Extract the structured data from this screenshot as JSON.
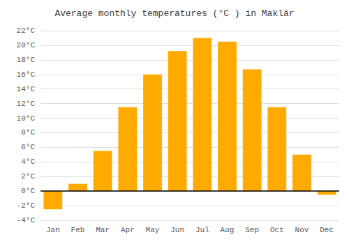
{
  "chart_data": {
    "type": "bar",
    "title": "Average monthly temperatures (°C ) in Maklár",
    "categories": [
      "Jan",
      "Feb",
      "Mar",
      "Apr",
      "May",
      "Jun",
      "Jul",
      "Aug",
      "Sep",
      "Oct",
      "Nov",
      "Dec"
    ],
    "values": [
      -2.5,
      1.0,
      5.5,
      11.5,
      16.0,
      19.2,
      21.0,
      20.5,
      16.7,
      11.5,
      5.0,
      -0.5
    ],
    "color": "#FFAA00",
    "ylim": [
      -4,
      22
    ],
    "yticks": [
      {
        "value": -4,
        "label": "-4°C"
      },
      {
        "value": -2,
        "label": "-2°C"
      },
      {
        "value": 0,
        "label": "0°C"
      },
      {
        "value": 2,
        "label": "2°C"
      },
      {
        "value": 4,
        "label": "4°C"
      },
      {
        "value": 6,
        "label": "6°C"
      },
      {
        "value": 8,
        "label": "8°C"
      },
      {
        "value": 10,
        "label": "10°C"
      },
      {
        "value": 12,
        "label": "12°C"
      },
      {
        "value": 14,
        "label": "14°C"
      },
      {
        "value": 16,
        "label": "16°C"
      },
      {
        "value": 18,
        "label": "18°C"
      },
      {
        "value": 20,
        "label": "20°C"
      },
      {
        "value": 22,
        "label": "22°C"
      }
    ],
    "grid": true
  }
}
